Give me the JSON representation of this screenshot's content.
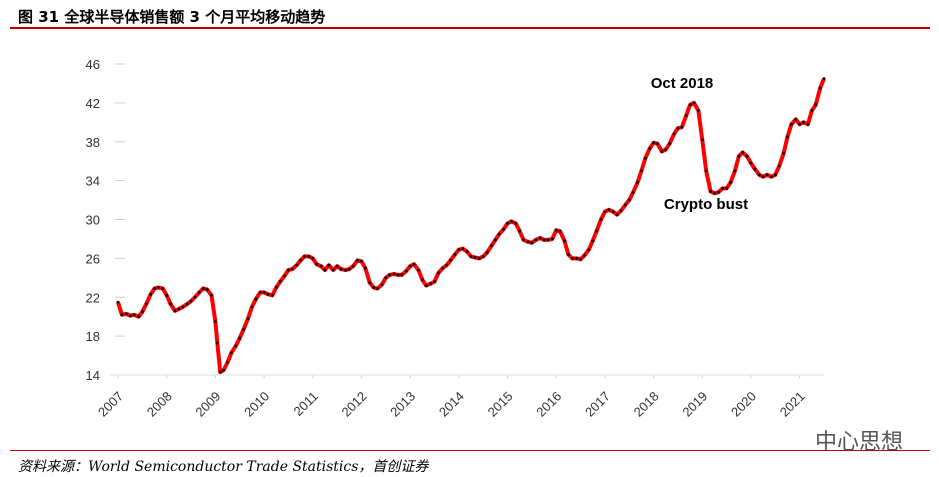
{
  "chart_data": {
    "type": "line",
    "title": "图 31 全球半导体销售额 3 个月平均移动趋势",
    "source": "资料来源：World Semiconductor Trade Statistics，首创证券",
    "annotations": [
      "Oct 2018",
      "Crypto bust"
    ],
    "color": "#ff0000",
    "marker_color": "#000000",
    "xlim": [
      2007,
      2021.5
    ],
    "xticks": [
      2007,
      2008,
      2009,
      2010,
      2011,
      2012,
      2013,
      2014,
      2015,
      2016,
      2017,
      2018,
      2019,
      2020,
      2021
    ],
    "ylim": [
      14,
      46
    ],
    "yticks": [
      14,
      18,
      22,
      26,
      30,
      34,
      38,
      42,
      46
    ],
    "x": [
      2007.0,
      2007.08,
      2007.17,
      2007.25,
      2007.33,
      2007.42,
      2007.5,
      2007.58,
      2007.67,
      2007.75,
      2007.83,
      2007.92,
      2008.0,
      2008.08,
      2008.17,
      2008.25,
      2008.33,
      2008.42,
      2008.5,
      2008.58,
      2008.67,
      2008.75,
      2008.83,
      2008.92,
      2009.0,
      2009.04,
      2009.1,
      2009.17,
      2009.25,
      2009.33,
      2009.42,
      2009.5,
      2009.58,
      2009.67,
      2009.75,
      2009.83,
      2009.92,
      2010.0,
      2010.08,
      2010.17,
      2010.25,
      2010.33,
      2010.42,
      2010.5,
      2010.58,
      2010.67,
      2010.75,
      2010.83,
      2010.92,
      2011.0,
      2011.08,
      2011.17,
      2011.25,
      2011.33,
      2011.42,
      2011.5,
      2011.58,
      2011.67,
      2011.75,
      2011.83,
      2011.92,
      2012.0,
      2012.08,
      2012.17,
      2012.25,
      2012.33,
      2012.42,
      2012.5,
      2012.58,
      2012.67,
      2012.75,
      2012.83,
      2012.92,
      2013.0,
      2013.08,
      2013.17,
      2013.25,
      2013.33,
      2013.42,
      2013.5,
      2013.58,
      2013.67,
      2013.75,
      2013.83,
      2013.92,
      2014.0,
      2014.08,
      2014.17,
      2014.25,
      2014.33,
      2014.42,
      2014.5,
      2014.58,
      2014.67,
      2014.75,
      2014.83,
      2014.92,
      2015.0,
      2015.08,
      2015.17,
      2015.25,
      2015.33,
      2015.42,
      2015.5,
      2015.58,
      2015.67,
      2015.75,
      2015.83,
      2015.92,
      2016.0,
      2016.08,
      2016.17,
      2016.25,
      2016.33,
      2016.42,
      2016.5,
      2016.58,
      2016.67,
      2016.75,
      2016.83,
      2016.92,
      2017.0,
      2017.08,
      2017.17,
      2017.25,
      2017.33,
      2017.42,
      2017.5,
      2017.58,
      2017.67,
      2017.75,
      2017.83,
      2017.92,
      2018.0,
      2018.08,
      2018.17,
      2018.25,
      2018.33,
      2018.42,
      2018.5,
      2018.58,
      2018.67,
      2018.75,
      2018.83,
      2018.92,
      2019.0,
      2019.08,
      2019.17,
      2019.25,
      2019.33,
      2019.42,
      2019.5,
      2019.58,
      2019.67,
      2019.75,
      2019.83,
      2019.92,
      2020.0,
      2020.08,
      2020.17,
      2020.25,
      2020.33,
      2020.42,
      2020.5,
      2020.58,
      2020.67,
      2020.75,
      2020.83,
      2020.92,
      2021.0,
      2021.08,
      2021.17,
      2021.25,
      2021.33,
      2021.42,
      2021.5
    ],
    "values": [
      21.5,
      20.2,
      20.3,
      20.1,
      20.2,
      20.0,
      20.5,
      21.3,
      22.3,
      22.9,
      23.0,
      22.9,
      22.2,
      21.3,
      20.6,
      20.8,
      21.0,
      21.3,
      21.6,
      22.0,
      22.5,
      22.9,
      22.8,
      22.2,
      19.5,
      17.3,
      14.3,
      14.5,
      15.3,
      16.3,
      17.0,
      17.8,
      18.7,
      19.8,
      21.0,
      21.8,
      22.5,
      22.5,
      22.3,
      22.2,
      23.0,
      23.6,
      24.2,
      24.8,
      24.9,
      25.3,
      25.8,
      26.2,
      26.2,
      26.0,
      25.4,
      25.2,
      24.8,
      25.3,
      24.8,
      25.2,
      24.9,
      24.8,
      24.9,
      25.2,
      25.8,
      25.7,
      25.0,
      23.5,
      23.0,
      22.9,
      23.3,
      24.0,
      24.3,
      24.4,
      24.3,
      24.3,
      24.7,
      25.2,
      25.4,
      24.8,
      23.8,
      23.2,
      23.4,
      23.6,
      24.5,
      25.0,
      25.3,
      25.8,
      26.4,
      26.9,
      27.0,
      26.7,
      26.2,
      26.1,
      26.0,
      26.2,
      26.6,
      27.3,
      27.9,
      28.5,
      29.0,
      29.6,
      29.8,
      29.6,
      28.8,
      27.9,
      27.7,
      27.6,
      27.9,
      28.1,
      27.9,
      27.9,
      28.0,
      28.9,
      28.8,
      27.8,
      26.4,
      26.0,
      26.0,
      25.9,
      26.3,
      26.9,
      27.8,
      28.8,
      30.0,
      30.8,
      31.0,
      30.8,
      30.5,
      30.9,
      31.5,
      32.0,
      32.8,
      33.8,
      35.0,
      36.3,
      37.3,
      37.9,
      37.8,
      37.0,
      37.2,
      37.8,
      38.8,
      39.4,
      39.5,
      40.7,
      41.8,
      42.0,
      41.2,
      38.2,
      35.0,
      32.9,
      32.7,
      32.8,
      33.2,
      33.2,
      33.8,
      35.0,
      36.5,
      36.9,
      36.5,
      35.8,
      35.2,
      34.6,
      34.4,
      34.6,
      34.4,
      34.6,
      35.5,
      36.8,
      38.5,
      39.8,
      40.3,
      39.8,
      40.0,
      39.8,
      41.2,
      41.8,
      43.5,
      44.5
    ]
  },
  "watermark": "中心思想"
}
